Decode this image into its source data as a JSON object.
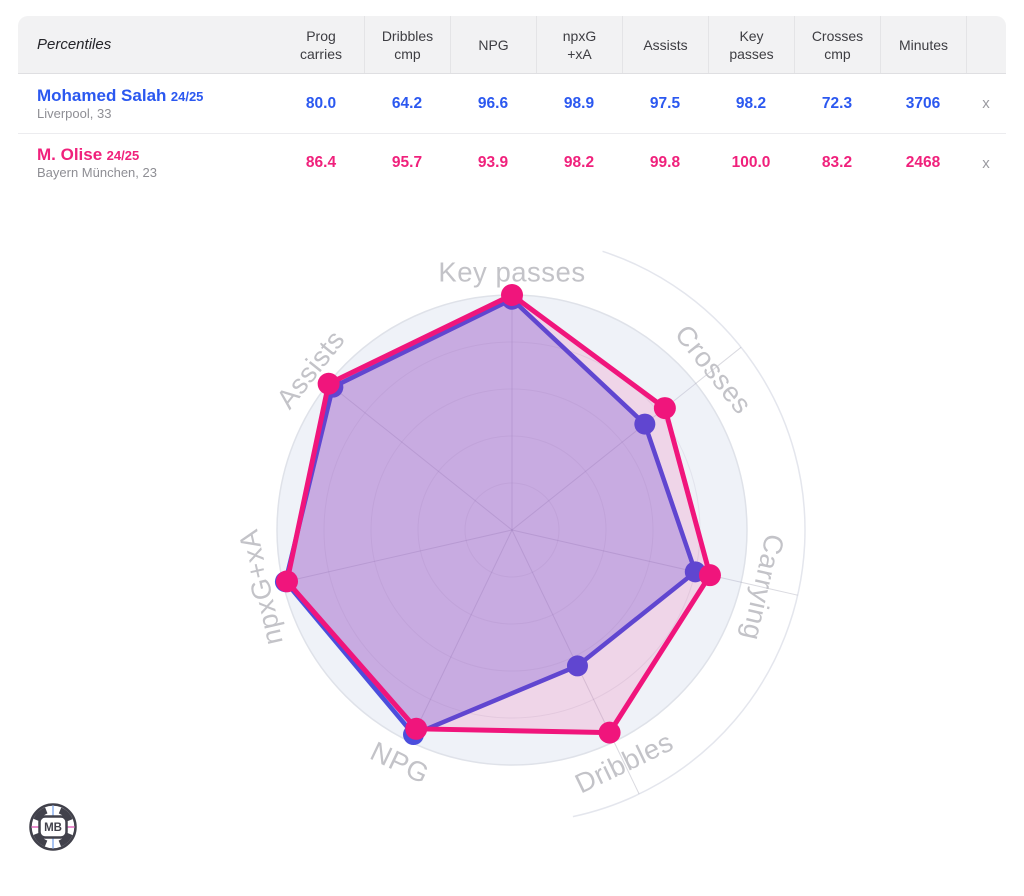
{
  "page": {
    "background": "#ffffff"
  },
  "table": {
    "title": "Percentiles",
    "columns": [
      "Prog carries",
      "Dribbles cmp",
      "NPG",
      "npxG +xA",
      "Assists",
      "Key passes",
      "Crosses cmp",
      "Minutes"
    ],
    "remove_label": "x",
    "rows": [
      {
        "name": "Mohamed Salah",
        "season": "24/25",
        "club": "Liverpool, 33",
        "color": "#2b58f0",
        "values": [
          "80.0",
          "64.2",
          "96.6",
          "98.9",
          "97.5",
          "98.2",
          "72.3",
          "3706"
        ]
      },
      {
        "name": "M. Olise",
        "season": "24/25",
        "club": "Bayern München, 23",
        "color": "#f0217c",
        "values": [
          "86.4",
          "95.7",
          "93.9",
          "98.2",
          "99.8",
          "100.0",
          "83.2",
          "2468"
        ]
      }
    ]
  },
  "chart_data": {
    "type": "radar",
    "categories": [
      "Key passes",
      "Crosses",
      "Carrying",
      "Dribbles",
      "NPG",
      "npxG+xA",
      "Assists"
    ],
    "series": [
      {
        "name": "Mohamed Salah 24/25",
        "color": "#4b4edd",
        "fill": "rgba(104,92,225,0.32)",
        "values": [
          98.2,
          72.3,
          80.0,
          64.2,
          96.6,
          98.9,
          97.5
        ]
      },
      {
        "name": "M. Olise 24/25",
        "color": "#f0157c",
        "fill": "rgba(240,21,124,0.13)",
        "values": [
          100.0,
          83.2,
          86.4,
          95.7,
          93.9,
          98.2,
          99.8
        ]
      }
    ],
    "rmin": 0,
    "rmax": 100,
    "start": "top",
    "direction": "clockwise",
    "grid": "concentric-rings-and-spokes",
    "legend_position": "none",
    "axis_label_color": "#c3c3c8",
    "plot_bg_color": "#eff2f8"
  },
  "logo": {
    "text": "MB"
  }
}
